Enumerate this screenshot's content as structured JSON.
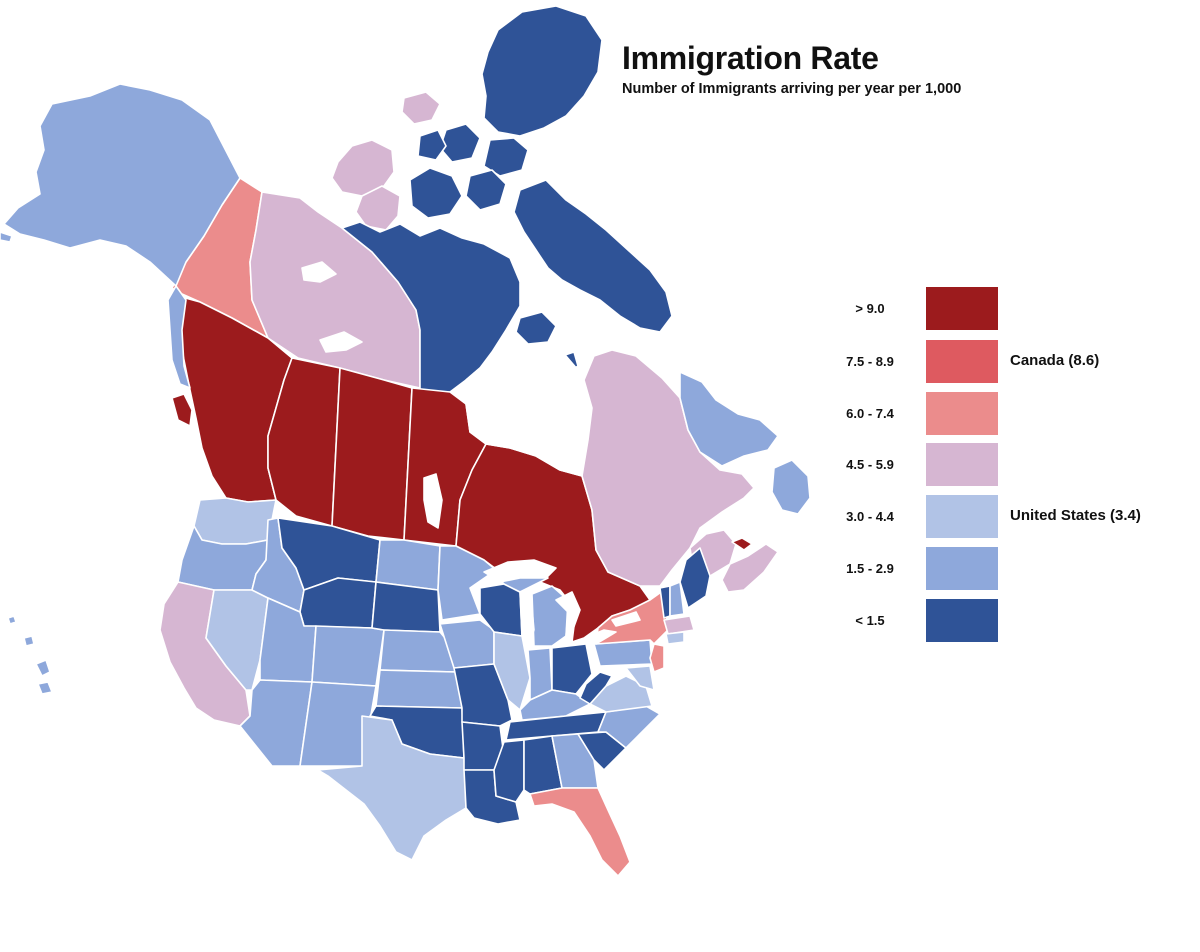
{
  "title": "Immigration Rate",
  "subtitle": "Number of Immigrants arriving per year per 1,000",
  "colors": {
    "gt9": "#9c1b1d",
    "r75_89": "#de5a60",
    "r60_74": "#eb8c8c",
    "r45_59": "#d6b6d2",
    "r30_44": "#b1c3e6",
    "r15_29": "#8ea8db",
    "lt15": "#2f5397",
    "water": "#ffffff"
  },
  "legend": {
    "items": [
      {
        "label": "> 9.0",
        "color": "#9c1b1d",
        "note": ""
      },
      {
        "label": "7.5 - 8.9",
        "color": "#de5a60",
        "note": "Canada (8.6)"
      },
      {
        "label": "6.0 - 7.4",
        "color": "#eb8c8c",
        "note": ""
      },
      {
        "label": "4.5 - 5.9",
        "color": "#d6b6d2",
        "note": ""
      },
      {
        "label": "3.0 - 4.4",
        "color": "#b1c3e6",
        "note": "United States (3.4)"
      },
      {
        "label": "1.5 - 2.9",
        "color": "#8ea8db",
        "note": ""
      },
      {
        "label": "< 1.5",
        "color": "#2f5397",
        "note": ""
      }
    ]
  }
}
